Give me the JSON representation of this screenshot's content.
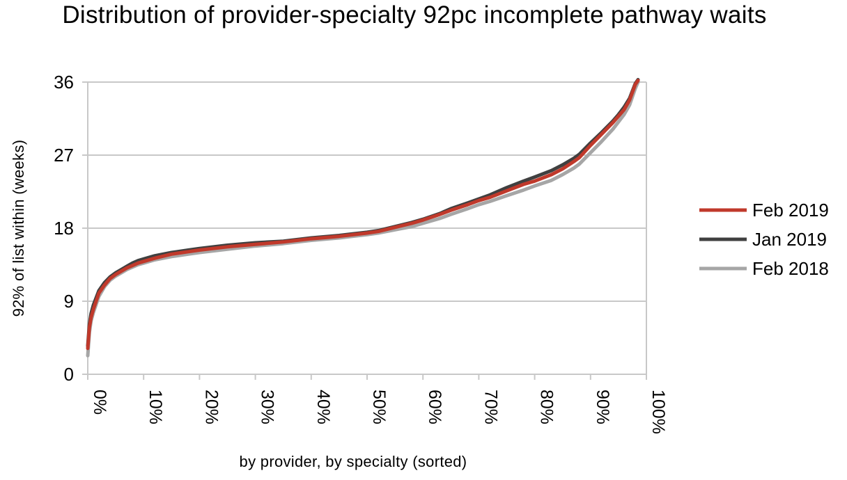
{
  "chart_data": {
    "type": "line",
    "title": "Distribution of provider-specialty 92pc incomplete pathway waits",
    "xlabel": "by provider, by specialty (sorted)",
    "ylabel": "92% of list within (weeks)",
    "ylim": [
      0,
      36
    ],
    "yticks": [
      "0",
      "9",
      "18",
      "27",
      "36"
    ],
    "xlim": [
      0,
      100
    ],
    "xticks": [
      "0%",
      "10%",
      "20%",
      "30%",
      "40%",
      "50%",
      "60%",
      "70%",
      "80%",
      "90%",
      "100%"
    ],
    "grid": "horizontal",
    "legend_position": "right",
    "x": [
      0,
      0.3,
      0.6,
      1,
      1.5,
      2,
      3,
      4,
      5,
      6,
      7,
      8,
      9,
      10,
      12,
      15,
      18,
      20,
      25,
      30,
      35,
      40,
      45,
      50,
      52,
      55,
      58,
      60,
      63,
      65,
      68,
      70,
      72,
      75,
      78,
      80,
      83,
      85,
      87,
      88,
      90,
      92,
      94,
      95,
      96,
      97,
      98,
      98.5
    ],
    "series": [
      {
        "name": "Feb 2019",
        "color": "#c0392b",
        "values": [
          3.2,
          5.8,
          7,
          8,
          9,
          10,
          11,
          11.8,
          12.3,
          12.7,
          13.1,
          13.4,
          13.7,
          13.9,
          14.3,
          14.8,
          15.1,
          15.3,
          15.7,
          16.0,
          16.3,
          16.7,
          17.0,
          17.4,
          17.6,
          18.1,
          18.6,
          19.0,
          19.7,
          20.2,
          20.9,
          21.4,
          21.8,
          22.6,
          23.4,
          23.8,
          24.6,
          25.3,
          26.2,
          26.7,
          28.2,
          29.6,
          31.0,
          31.8,
          32.6,
          33.8,
          35.7,
          36.2
        ]
      },
      {
        "name": "Jan 2019",
        "color": "#404040",
        "values": [
          3.5,
          6.2,
          7.5,
          8.5,
          9.4,
          10.3,
          11.3,
          12.0,
          12.5,
          12.9,
          13.3,
          13.7,
          14.0,
          14.2,
          14.6,
          15.0,
          15.3,
          15.5,
          15.9,
          16.2,
          16.4,
          16.8,
          17.1,
          17.5,
          17.7,
          18.2,
          18.7,
          19.1,
          19.8,
          20.4,
          21.1,
          21.6,
          22.1,
          23.0,
          23.8,
          24.3,
          25.1,
          25.8,
          26.6,
          27.1,
          28.5,
          29.8,
          31.2,
          32.0,
          32.9,
          34.0,
          35.8,
          36.3
        ]
      },
      {
        "name": "Feb 2018",
        "color": "#a6a6a6",
        "values": [
          2.3,
          5.2,
          6.6,
          7.6,
          8.6,
          9.6,
          10.8,
          11.6,
          12.1,
          12.5,
          12.9,
          13.2,
          13.5,
          13.7,
          14.1,
          14.5,
          14.8,
          15.0,
          15.4,
          15.8,
          16.1,
          16.5,
          16.8,
          17.2,
          17.4,
          17.8,
          18.2,
          18.6,
          19.2,
          19.7,
          20.4,
          20.9,
          21.3,
          22.0,
          22.7,
          23.2,
          23.9,
          24.6,
          25.4,
          25.9,
          27.3,
          28.7,
          30.2,
          31.1,
          32.0,
          33.2,
          35.2,
          36.0
        ]
      }
    ]
  }
}
